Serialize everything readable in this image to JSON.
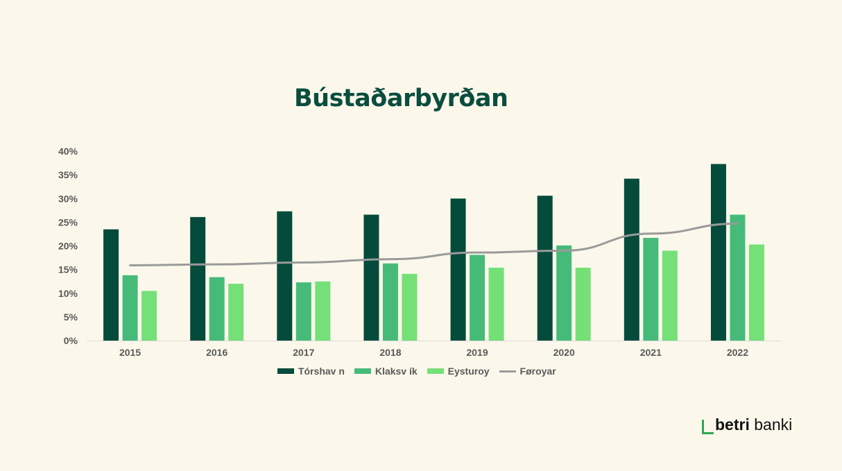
{
  "chart_data": {
    "type": "bar",
    "title": "Bústaðarbyrðan",
    "categories": [
      "2015",
      "2016",
      "2017",
      "2018",
      "2019",
      "2020",
      "2021",
      "2022"
    ],
    "series": [
      {
        "name": "Tórshavn",
        "legend_label": "Tórshav n",
        "type": "bar",
        "color": "#044b3b",
        "values": [
          23.5,
          26.1,
          27.3,
          26.6,
          30.0,
          30.6,
          34.2,
          37.3
        ]
      },
      {
        "name": "Klaksvík",
        "legend_label": "Klaksv ík",
        "type": "bar",
        "color": "#46bb79",
        "values": [
          13.8,
          13.4,
          12.3,
          16.3,
          18.1,
          20.1,
          21.7,
          26.6
        ]
      },
      {
        "name": "Eysturoy",
        "legend_label": "Eysturoy",
        "type": "bar",
        "color": "#75e078",
        "values": [
          10.5,
          12.0,
          12.5,
          14.1,
          15.4,
          15.4,
          19.0,
          20.3
        ]
      },
      {
        "name": "Føroyar",
        "legend_label": "Føroyar",
        "type": "line",
        "color": "#9a9a9a",
        "values": [
          15.9,
          16.1,
          16.5,
          17.2,
          18.6,
          19.0,
          22.6,
          24.7
        ]
      }
    ],
    "yticks": [
      "0%",
      "5%",
      "10%",
      "15%",
      "20%",
      "25%",
      "30%",
      "35%",
      "40%"
    ],
    "ylim": [
      0,
      40
    ],
    "xlabel": "",
    "ylabel": "",
    "grid": false,
    "legend_position": "bottom"
  },
  "logo": {
    "part1": "betri",
    "part2": " banki"
  }
}
